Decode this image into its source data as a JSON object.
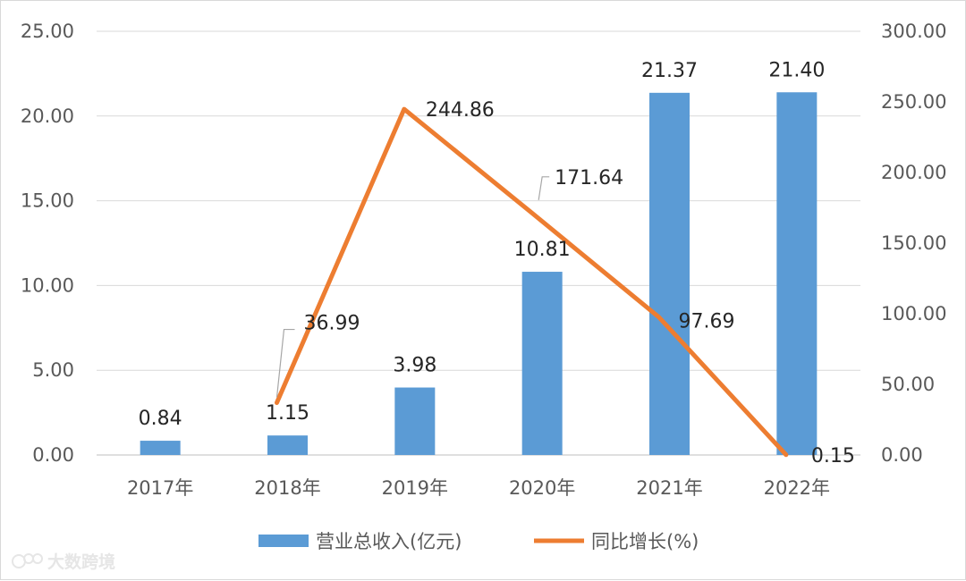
{
  "chart_data": {
    "type": "bar",
    "categories": [
      "2017年",
      "2018年",
      "2019年",
      "2020年",
      "2021年",
      "2022年"
    ],
    "series": [
      {
        "name": "营业总收入(亿元)",
        "type": "bar",
        "axis": "left",
        "color": "#5b9bd5",
        "values": [
          0.84,
          1.15,
          3.98,
          10.81,
          21.37,
          21.4
        ],
        "labels": [
          "0.84",
          "1.15",
          "3.98",
          "10.81",
          "21.37",
          "21.40"
        ]
      },
      {
        "name": "同比增长(%)",
        "type": "line",
        "axis": "right",
        "color": "#ed7d31",
        "x": [
          "2018年",
          "2019年",
          "2020年",
          "2021年",
          "2022年"
        ],
        "values": [
          36.99,
          244.86,
          171.64,
          97.69,
          0.15
        ],
        "labels": [
          "36.99",
          "244.86",
          "171.64",
          "97.69",
          "0.15"
        ]
      }
    ],
    "ylim": [
      0,
      25
    ],
    "y2lim": [
      0,
      300
    ],
    "yticks": [
      "0.00",
      "5.00",
      "10.00",
      "15.00",
      "20.00",
      "25.00"
    ],
    "y2ticks": [
      "0.00",
      "50.00",
      "100.00",
      "150.00",
      "200.00",
      "250.00",
      "300.00"
    ],
    "grid": true,
    "legend_position": "bottom"
  },
  "watermark": {
    "text": "大数跨境",
    "icon": "sun-logo-icon"
  }
}
